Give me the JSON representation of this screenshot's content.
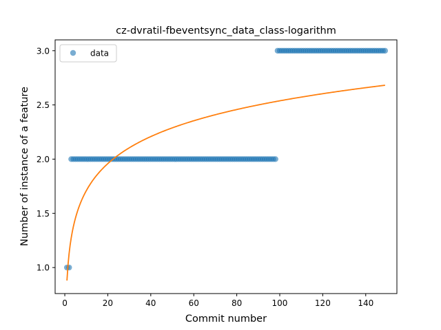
{
  "chart_data": {
    "type": "scatter",
    "title": "cz-dvratil-fbeventsync_data_class-logarithm",
    "xlabel": "Commit number",
    "ylabel": "Number of instance of a feature",
    "xlim": [
      -4.5,
      154.5
    ],
    "ylim": [
      0.76,
      3.1
    ],
    "x_ticks": [
      0,
      20,
      40,
      60,
      80,
      100,
      120,
      140
    ],
    "x_tick_labels": [
      "0",
      "20",
      "40",
      "60",
      "80",
      "100",
      "120",
      "140"
    ],
    "y_ticks": [
      1.0,
      1.5,
      2.0,
      2.5,
      3.0
    ],
    "y_tick_labels": [
      "1.0",
      "1.5",
      "2.0",
      "2.5",
      "3.0"
    ],
    "grid": false,
    "legend_position": "top-left",
    "legend": [
      "data"
    ],
    "series": [
      {
        "name": "data",
        "kind": "scatter",
        "color": "#1f77b4",
        "segments": [
          {
            "x_start": 1,
            "x_end": 2,
            "y": 1.0
          },
          {
            "x_start": 3,
            "x_end": 98,
            "y": 2.0
          },
          {
            "x_start": 99,
            "x_end": 149,
            "y": 3.0
          }
        ]
      },
      {
        "kind": "line",
        "color": "#ff7f0e",
        "model": "logarithmic fit y = a + b*ln(x)",
        "a": 0.88,
        "b": 0.36,
        "x_range": [
          1,
          149
        ]
      }
    ]
  }
}
